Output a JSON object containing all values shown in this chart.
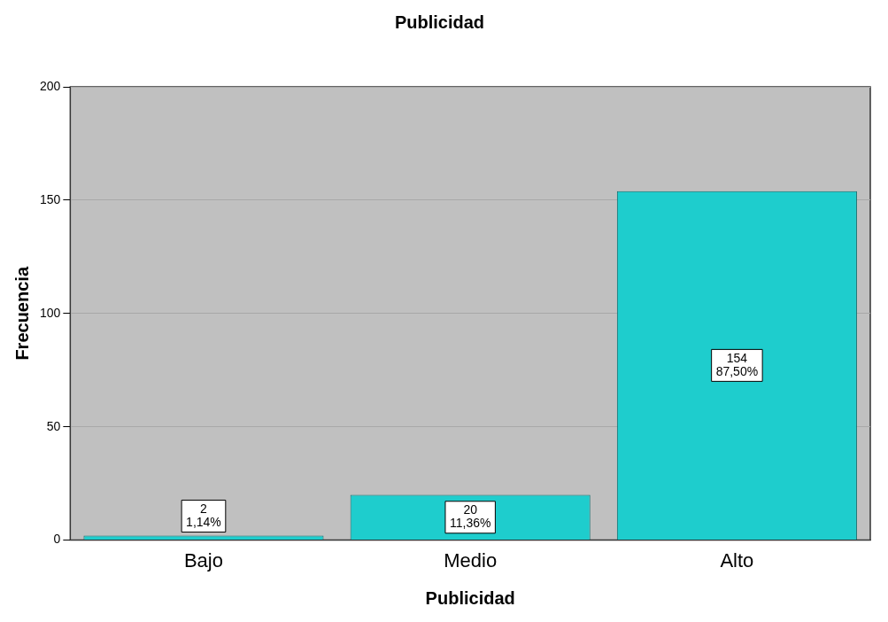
{
  "chart_data": {
    "type": "bar",
    "title": "Publicidad",
    "xlabel": "Publicidad",
    "ylabel": "Frecuencia",
    "categories": [
      "Bajo",
      "Medio",
      "Alto"
    ],
    "values": [
      2,
      20,
      154
    ],
    "color": "#1ecdcd",
    "value_labels": [
      "2\n1,14%",
      "20\n11,36%",
      "154\n87,50%"
    ],
    "ylim": [
      0,
      200
    ],
    "yticks": [
      0,
      50,
      100,
      150,
      200
    ],
    "grid": "y",
    "legend": false
  }
}
